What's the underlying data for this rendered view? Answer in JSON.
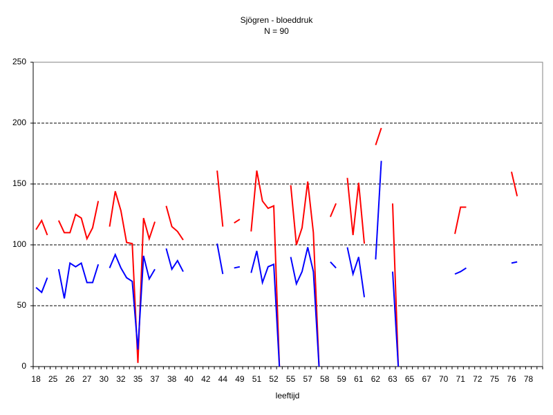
{
  "chart_data": {
    "type": "line",
    "title": "Sjögren - bloeddruk",
    "subtitle": "N = 90",
    "x_label": "leeftijd",
    "categories": [
      "18",
      null,
      null,
      "25",
      null,
      null,
      "26",
      null,
      null,
      "27",
      null,
      null,
      "30",
      null,
      null,
      "32",
      null,
      null,
      "35",
      null,
      null,
      "37",
      null,
      null,
      "38",
      null,
      null,
      "40",
      null,
      null,
      "42",
      null,
      null,
      "44",
      null,
      null,
      "49",
      null,
      null,
      "51",
      null,
      null,
      "52",
      null,
      null,
      "55",
      null,
      null,
      "57",
      null,
      null,
      "58",
      null,
      null,
      "59",
      null,
      null,
      "61",
      null,
      null,
      "62",
      null,
      null,
      "63",
      null,
      null,
      "65",
      null,
      null,
      "67",
      null,
      null,
      "70",
      null,
      null,
      "71",
      null,
      null,
      "72",
      null,
      null,
      "75",
      null,
      null,
      "76",
      null,
      null,
      "78",
      null,
      null
    ],
    "series": [
      {
        "color": "#ff0000",
        "values": [
          112.5,
          120,
          108,
          null,
          120,
          110,
          110,
          125,
          122,
          105,
          114,
          136,
          null,
          115,
          144,
          128,
          102,
          101,
          3,
          122,
          105,
          119,
          null,
          132,
          115,
          111,
          104,
          null,
          null,
          null,
          null,
          null,
          161,
          115,
          null,
          118,
          121,
          null,
          111,
          161,
          136,
          130,
          132,
          0,
          null,
          149,
          100,
          114,
          152,
          110,
          0,
          null,
          123,
          134,
          null,
          155,
          108,
          151,
          101,
          null,
          182,
          196,
          null,
          134,
          0,
          null,
          null,
          null,
          null,
          null,
          null,
          null,
          null,
          null,
          109,
          131,
          131,
          null,
          null,
          null,
          null,
          null,
          null,
          null,
          160,
          140,
          null,
          null,
          null,
          null
        ]
      },
      {
        "color": "#0000ff",
        "values": [
          65,
          61,
          73,
          null,
          80,
          56,
          85,
          82,
          85,
          69,
          69,
          84,
          null,
          81,
          92,
          81,
          73,
          70,
          14,
          91,
          72,
          80,
          null,
          97,
          80,
          87,
          78,
          null,
          null,
          null,
          null,
          null,
          101,
          76,
          null,
          81,
          82,
          null,
          77,
          95,
          69,
          82,
          84,
          0,
          null,
          90,
          68,
          78,
          98,
          78,
          0,
          null,
          86,
          81,
          null,
          98,
          76,
          90,
          57,
          null,
          88,
          169,
          null,
          78,
          0,
          null,
          null,
          null,
          null,
          null,
          null,
          null,
          null,
          null,
          76,
          78,
          81,
          null,
          null,
          null,
          null,
          null,
          null,
          null,
          85,
          86,
          null,
          null,
          null,
          null
        ]
      }
    ],
    "ylim": [
      0,
      250
    ],
    "yticks": [
      0,
      50,
      100,
      150,
      200,
      250
    ],
    "grid": true
  }
}
